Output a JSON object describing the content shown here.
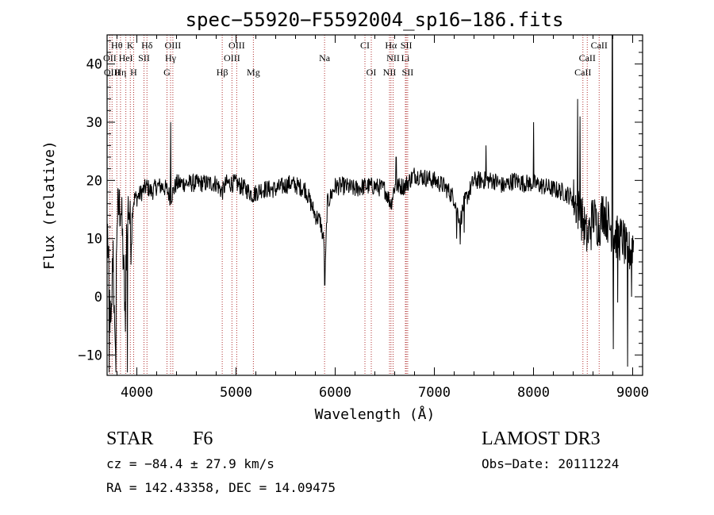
{
  "chart_data": {
    "type": "line",
    "title": "spec−55920−F5592004_sp16−186.fits",
    "xlabel": "Wavelength (Å)",
    "ylabel": "Flux (relative)",
    "xlim": [
      3700,
      9100
    ],
    "ylim": [
      -13.5,
      45
    ],
    "x_ticks": [
      4000,
      5000,
      6000,
      7000,
      8000,
      9000
    ],
    "x_tick_labels": [
      "4000",
      "5000",
      "6000",
      "7000",
      "8000",
      "9000"
    ],
    "y_ticks": [
      -10,
      0,
      10,
      20,
      30,
      40
    ],
    "y_tick_labels": [
      "−10",
      "0",
      "10",
      "20",
      "30",
      "40"
    ],
    "series": [
      {
        "name": "flux",
        "color": "#000000",
        "anchors": [
          [
            3700,
            14
          ],
          [
            3720,
            2
          ],
          [
            3740,
            -8
          ],
          [
            3760,
            10
          ],
          [
            3780,
            -12
          ],
          [
            3800,
            14
          ],
          [
            3820,
            15
          ],
          [
            3840,
            16
          ],
          [
            3860,
            8
          ],
          [
            3880,
            -2
          ],
          [
            3900,
            14
          ],
          [
            3920,
            16
          ],
          [
            3940,
            10
          ],
          [
            3960,
            16
          ],
          [
            3980,
            17
          ],
          [
            4000,
            17
          ],
          [
            4050,
            18
          ],
          [
            4100,
            19
          ],
          [
            4150,
            18
          ],
          [
            4200,
            19
          ],
          [
            4250,
            19
          ],
          [
            4300,
            18.5
          ],
          [
            4340,
            17
          ],
          [
            4400,
            19.5
          ],
          [
            4500,
            19.5
          ],
          [
            4600,
            19.5
          ],
          [
            4700,
            19.5
          ],
          [
            4800,
            19.5
          ],
          [
            4861,
            18
          ],
          [
            4900,
            19.5
          ],
          [
            5000,
            19.5
          ],
          [
            5100,
            18.5
          ],
          [
            5170,
            17.5
          ],
          [
            5250,
            18.5
          ],
          [
            5400,
            18.5
          ],
          [
            5550,
            19.5
          ],
          [
            5700,
            18.5
          ],
          [
            5800,
            14
          ],
          [
            5850,
            13
          ],
          [
            5890,
            9
          ],
          [
            5896,
            2
          ],
          [
            5920,
            16
          ],
          [
            6000,
            19
          ],
          [
            6100,
            19
          ],
          [
            6200,
            18.5
          ],
          [
            6300,
            19
          ],
          [
            6400,
            19
          ],
          [
            6500,
            18.5
          ],
          [
            6563,
            16
          ],
          [
            6600,
            19
          ],
          [
            6700,
            19
          ],
          [
            6800,
            21
          ],
          [
            6900,
            20.5
          ],
          [
            7000,
            20
          ],
          [
            7100,
            19
          ],
          [
            7200,
            17
          ],
          [
            7260,
            13
          ],
          [
            7300,
            16
          ],
          [
            7400,
            20
          ],
          [
            7500,
            20
          ],
          [
            7600,
            20
          ],
          [
            7700,
            19
          ],
          [
            7800,
            20
          ],
          [
            7900,
            19.5
          ],
          [
            8000,
            19.5
          ],
          [
            8100,
            19
          ],
          [
            8200,
            18.5
          ],
          [
            8300,
            18
          ],
          [
            8400,
            17
          ],
          [
            8450,
            15
          ],
          [
            8500,
            13
          ],
          [
            8542,
            10
          ],
          [
            8600,
            14
          ],
          [
            8662,
            12
          ],
          [
            8700,
            15
          ],
          [
            8750,
            13
          ],
          [
            8800,
            11
          ],
          [
            8850,
            10
          ],
          [
            8900,
            10
          ],
          [
            8950,
            7
          ],
          [
            9000,
            9
          ]
        ],
        "spikes": [
          [
            3720,
            -13
          ],
          [
            3790,
            -13
          ],
          [
            3885,
            -6
          ],
          [
            3905,
            -13
          ],
          [
            4340,
            30
          ],
          [
            5895,
            2
          ],
          [
            6615,
            24
          ],
          [
            7225,
            10
          ],
          [
            7262,
            9
          ],
          [
            7300,
            11
          ],
          [
            7520,
            26
          ],
          [
            8000,
            30
          ],
          [
            8410,
            14
          ],
          [
            8445,
            34
          ],
          [
            8470,
            31
          ],
          [
            8500,
            12
          ],
          [
            8580,
            8
          ],
          [
            8795,
            45
          ],
          [
            8805,
            -9
          ],
          [
            8850,
            -1
          ],
          [
            8950,
            -12
          ],
          [
            8990,
            0
          ]
        ]
      }
    ],
    "line_markers": [
      {
        "label": "Hθ",
        "wavelength": 3798,
        "row": 0
      },
      {
        "label": "K",
        "wavelength": 3934,
        "row": 0
      },
      {
        "label": "Hδ",
        "wavelength": 4102,
        "row": 0
      },
      {
        "label": "OIII",
        "wavelength": 4363,
        "row": 0
      },
      {
        "label": "OIII",
        "wavelength": 5007,
        "row": 0
      },
      {
        "label": "CI",
        "wavelength": 6300,
        "row": 0
      },
      {
        "label": "Hα",
        "wavelength": 6563,
        "row": 0
      },
      {
        "label": "SII",
        "wavelength": 6717,
        "row": 0
      },
      {
        "label": "CaII",
        "wavelength": 8662,
        "row": 0
      },
      {
        "label": "OII",
        "wavelength": 3727,
        "row": 1
      },
      {
        "label": "HeI",
        "wavelength": 3889,
        "row": 1
      },
      {
        "label": "SII",
        "wavelength": 4072,
        "row": 1
      },
      {
        "label": "Hγ",
        "wavelength": 4340,
        "row": 1
      },
      {
        "label": "OIII",
        "wavelength": 4959,
        "row": 1
      },
      {
        "label": "Na",
        "wavelength": 5893,
        "row": 1
      },
      {
        "label": "NII",
        "wavelength": 6584,
        "row": 1
      },
      {
        "label": "Li",
        "wavelength": 6708,
        "row": 1
      },
      {
        "label": "CaII",
        "wavelength": 8542,
        "row": 1
      },
      {
        "label": "OIII",
        "wavelength": 3750,
        "row": 2
      },
      {
        "label": "Hη",
        "wavelength": 3835,
        "row": 2
      },
      {
        "label": "H",
        "wavelength": 3968,
        "row": 2
      },
      {
        "label": "G",
        "wavelength": 4304,
        "row": 2
      },
      {
        "label": "Hβ",
        "wavelength": 4861,
        "row": 2
      },
      {
        "label": "Mg",
        "wavelength": 5175,
        "row": 2
      },
      {
        "label": "OI",
        "wavelength": 6364,
        "row": 2
      },
      {
        "label": "NII",
        "wavelength": 6548,
        "row": 2
      },
      {
        "label": "SII",
        "wavelength": 6731,
        "row": 2
      },
      {
        "label": "CaII",
        "wavelength": 8498,
        "row": 2
      }
    ]
  },
  "info": {
    "object_class": "STAR",
    "subclass": "F6",
    "survey": "LAMOST DR3",
    "cz": "cz = −84.4 ± 27.9 km/s",
    "obs_date": "Obs−Date: 20111224",
    "coords": "RA = 142.43358, DEC =  14.09475"
  },
  "colors": {
    "axis": "#000000",
    "spectrum": "#000000",
    "marker_line": "#b03030"
  }
}
